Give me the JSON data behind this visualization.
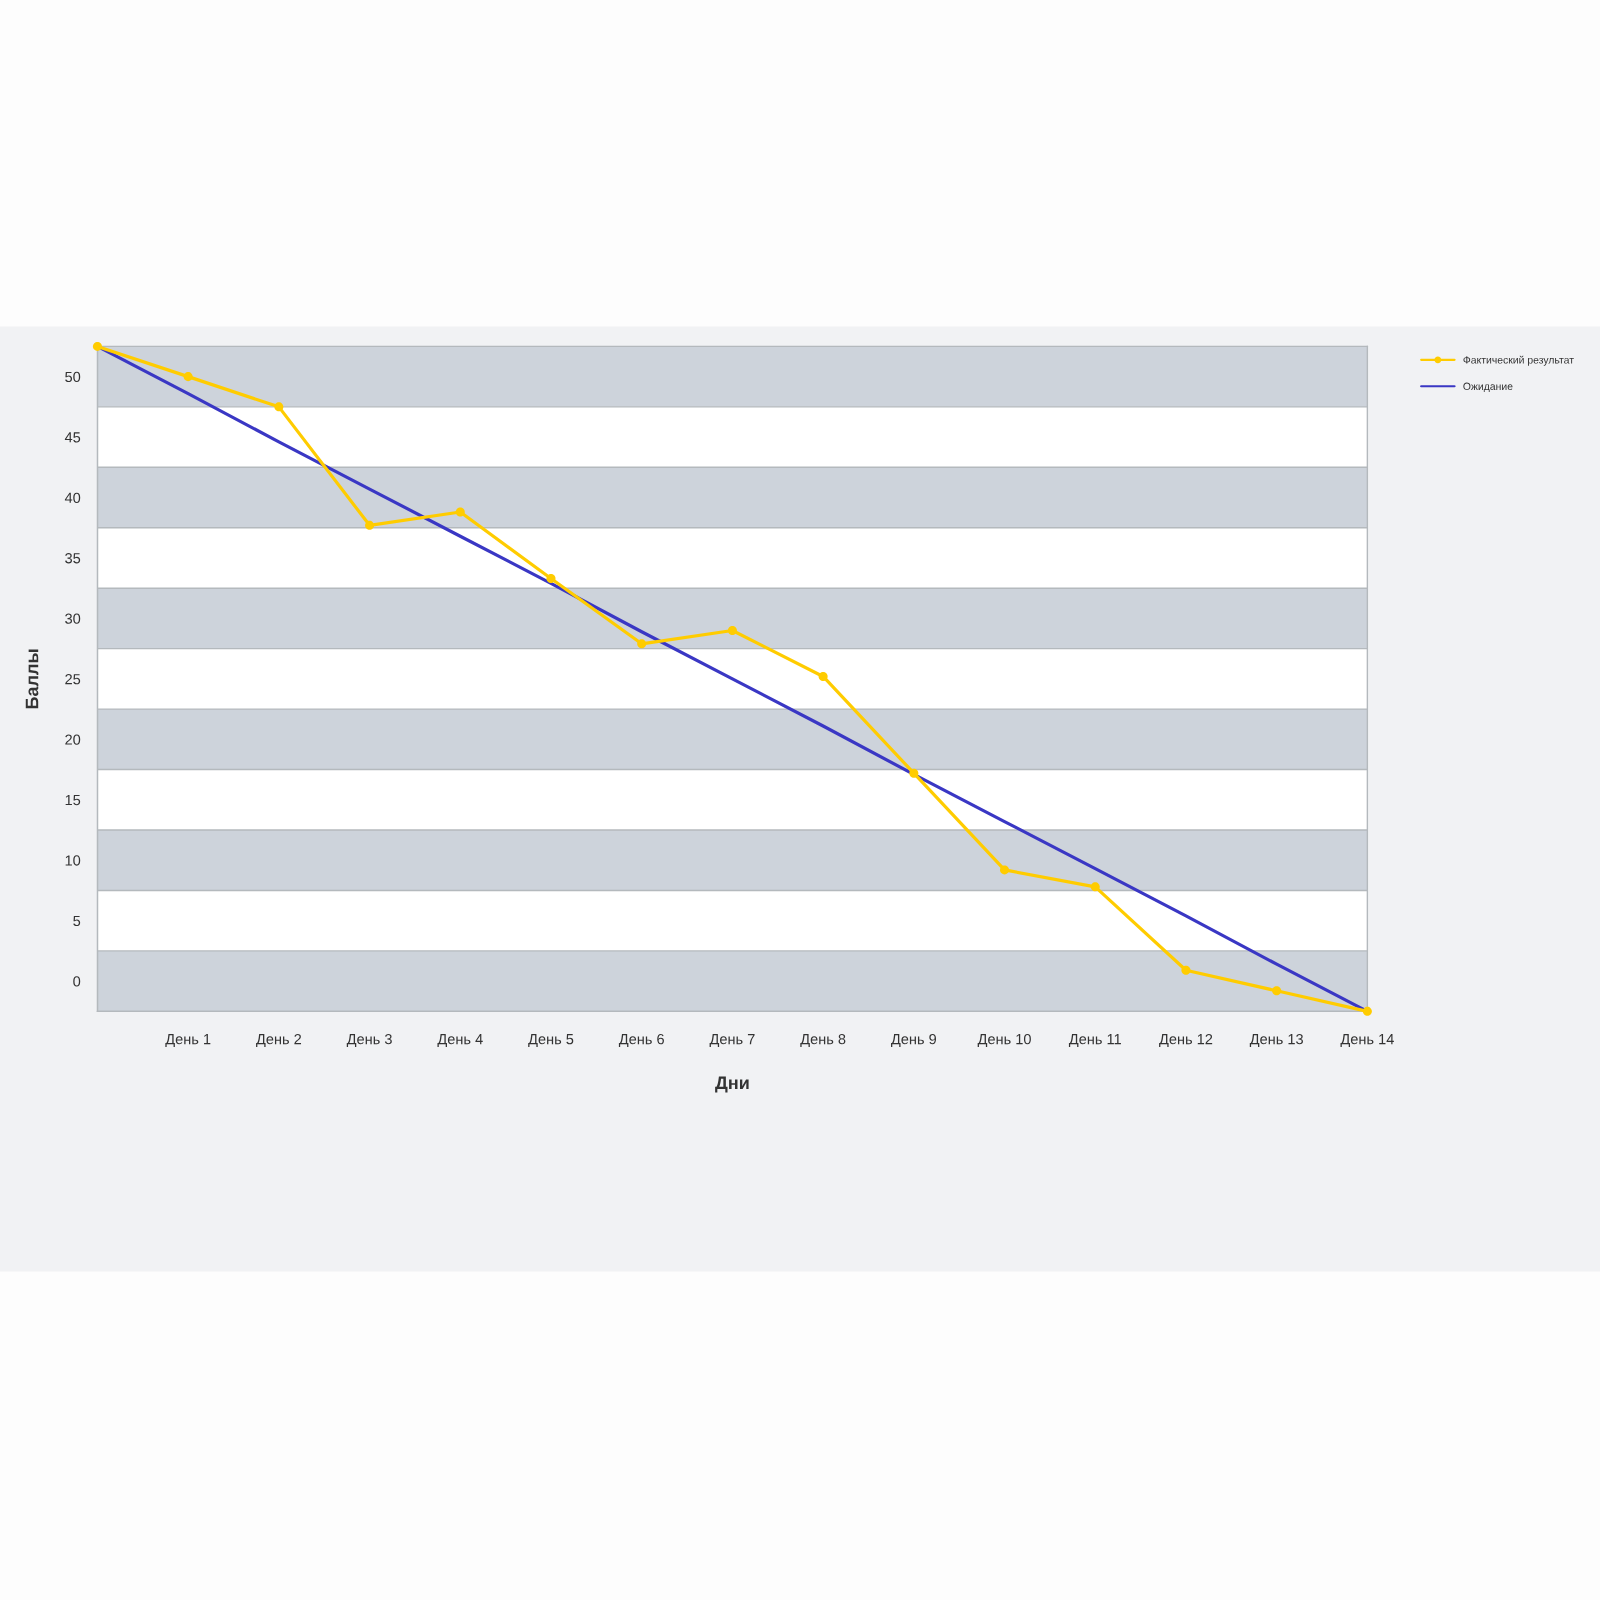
{
  "chart_data": {
    "type": "line",
    "xlabel": "Дни",
    "ylabel": "Баллы",
    "categories": [
      null,
      "День 1",
      "День 2",
      "День 3",
      "День 4",
      "День 5",
      "День 6",
      "День 7",
      "День 8",
      "День 9",
      "День 10",
      "День 11",
      "День 12",
      "День 13",
      "День 14"
    ],
    "ylim": [
      -2.5,
      52.5
    ],
    "yticks": [
      {
        "value": -2.5,
        "label": null
      },
      0,
      {
        "value": 2.5,
        "label": null
      },
      5,
      {
        "value": 7.5,
        "label": null
      },
      10,
      {
        "value": 12.5,
        "label": null
      },
      15,
      {
        "value": 17.5,
        "label": null
      },
      20,
      {
        "value": 22.5,
        "label": null
      },
      25,
      {
        "value": 27.5,
        "label": null
      },
      30,
      {
        "value": 32.5,
        "label": null
      },
      35,
      {
        "value": 37.5,
        "label": null
      },
      40,
      {
        "value": 42.5,
        "label": null
      },
      45,
      {
        "value": 47.5,
        "label": null
      },
      50,
      {
        "value": 52.5,
        "label": null
      }
    ],
    "grid": true,
    "bands": [
      {
        "axis": "y",
        "from": -2.5,
        "to": 2.5,
        "color": "#cdd3db"
      },
      {
        "axis": "y",
        "from": 7.5,
        "to": 12.5,
        "color": "#cdd3db"
      },
      {
        "axis": "y",
        "from": 17.5,
        "to": 22.5,
        "color": "#cdd3db"
      },
      {
        "axis": "y",
        "from": 27.5,
        "to": 32.5,
        "color": "#cdd3db"
      },
      {
        "axis": "y",
        "from": 37.5,
        "to": 42.5,
        "color": "#cdd3db"
      },
      {
        "axis": "y",
        "from": 47.5,
        "to": 52.5,
        "color": "#cdd3db"
      }
    ],
    "legend": "top right",
    "series": [
      {
        "name": "Фактический результат",
        "color": "#ffcc00",
        "marker": "circle",
        "values": [
          52.5,
          50,
          47.5,
          37.7,
          38.8,
          33.3,
          27.9,
          29,
          25.2,
          17.2,
          9.2,
          7.8,
          0.9,
          -0.8,
          -2.5
        ]
      },
      {
        "name": "Ожидание",
        "color": "#3a37c4",
        "values": [
          52.5,
          48.6,
          44.6,
          40.7,
          36.8,
          32.9,
          28.9,
          25,
          21.1,
          17.1,
          13.2,
          9.3,
          5.4,
          1.4,
          -2.5
        ]
      }
    ]
  }
}
